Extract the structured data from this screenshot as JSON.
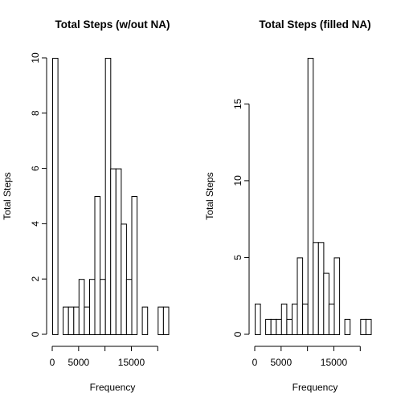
{
  "chart_data": [
    {
      "type": "bar",
      "title": "Total Steps (w/out NA)",
      "xlabel": "Frequency",
      "ylabel": "Total Steps",
      "bin_width": 1000,
      "xlim": [
        0,
        23000
      ],
      "ylim": [
        0,
        10
      ],
      "x_ticks": [
        0,
        5000,
        15000
      ],
      "x_tick_marks": [
        0,
        5000,
        10000,
        15000,
        20000
      ],
      "y_ticks": [
        0,
        2,
        4,
        6,
        8,
        10
      ],
      "values": [
        10,
        0,
        1,
        1,
        1,
        2,
        1,
        2,
        5,
        2,
        10,
        6,
        6,
        4,
        2,
        5,
        0,
        1,
        0,
        0,
        1,
        1
      ]
    },
    {
      "type": "bar",
      "title": "Total Steps (filled NA)",
      "xlabel": "Frequency",
      "ylabel": "Total Steps",
      "bin_width": 1000,
      "xlim": [
        0,
        23000
      ],
      "ylim": [
        0,
        18
      ],
      "x_ticks": [
        0,
        5000,
        15000
      ],
      "x_tick_marks": [
        0,
        5000,
        10000,
        15000,
        20000
      ],
      "y_ticks": [
        0,
        5,
        10,
        15
      ],
      "values": [
        2,
        0,
        1,
        1,
        1,
        2,
        1,
        2,
        5,
        2,
        18,
        6,
        6,
        4,
        2,
        5,
        0,
        1,
        0,
        0,
        1,
        1
      ]
    }
  ]
}
